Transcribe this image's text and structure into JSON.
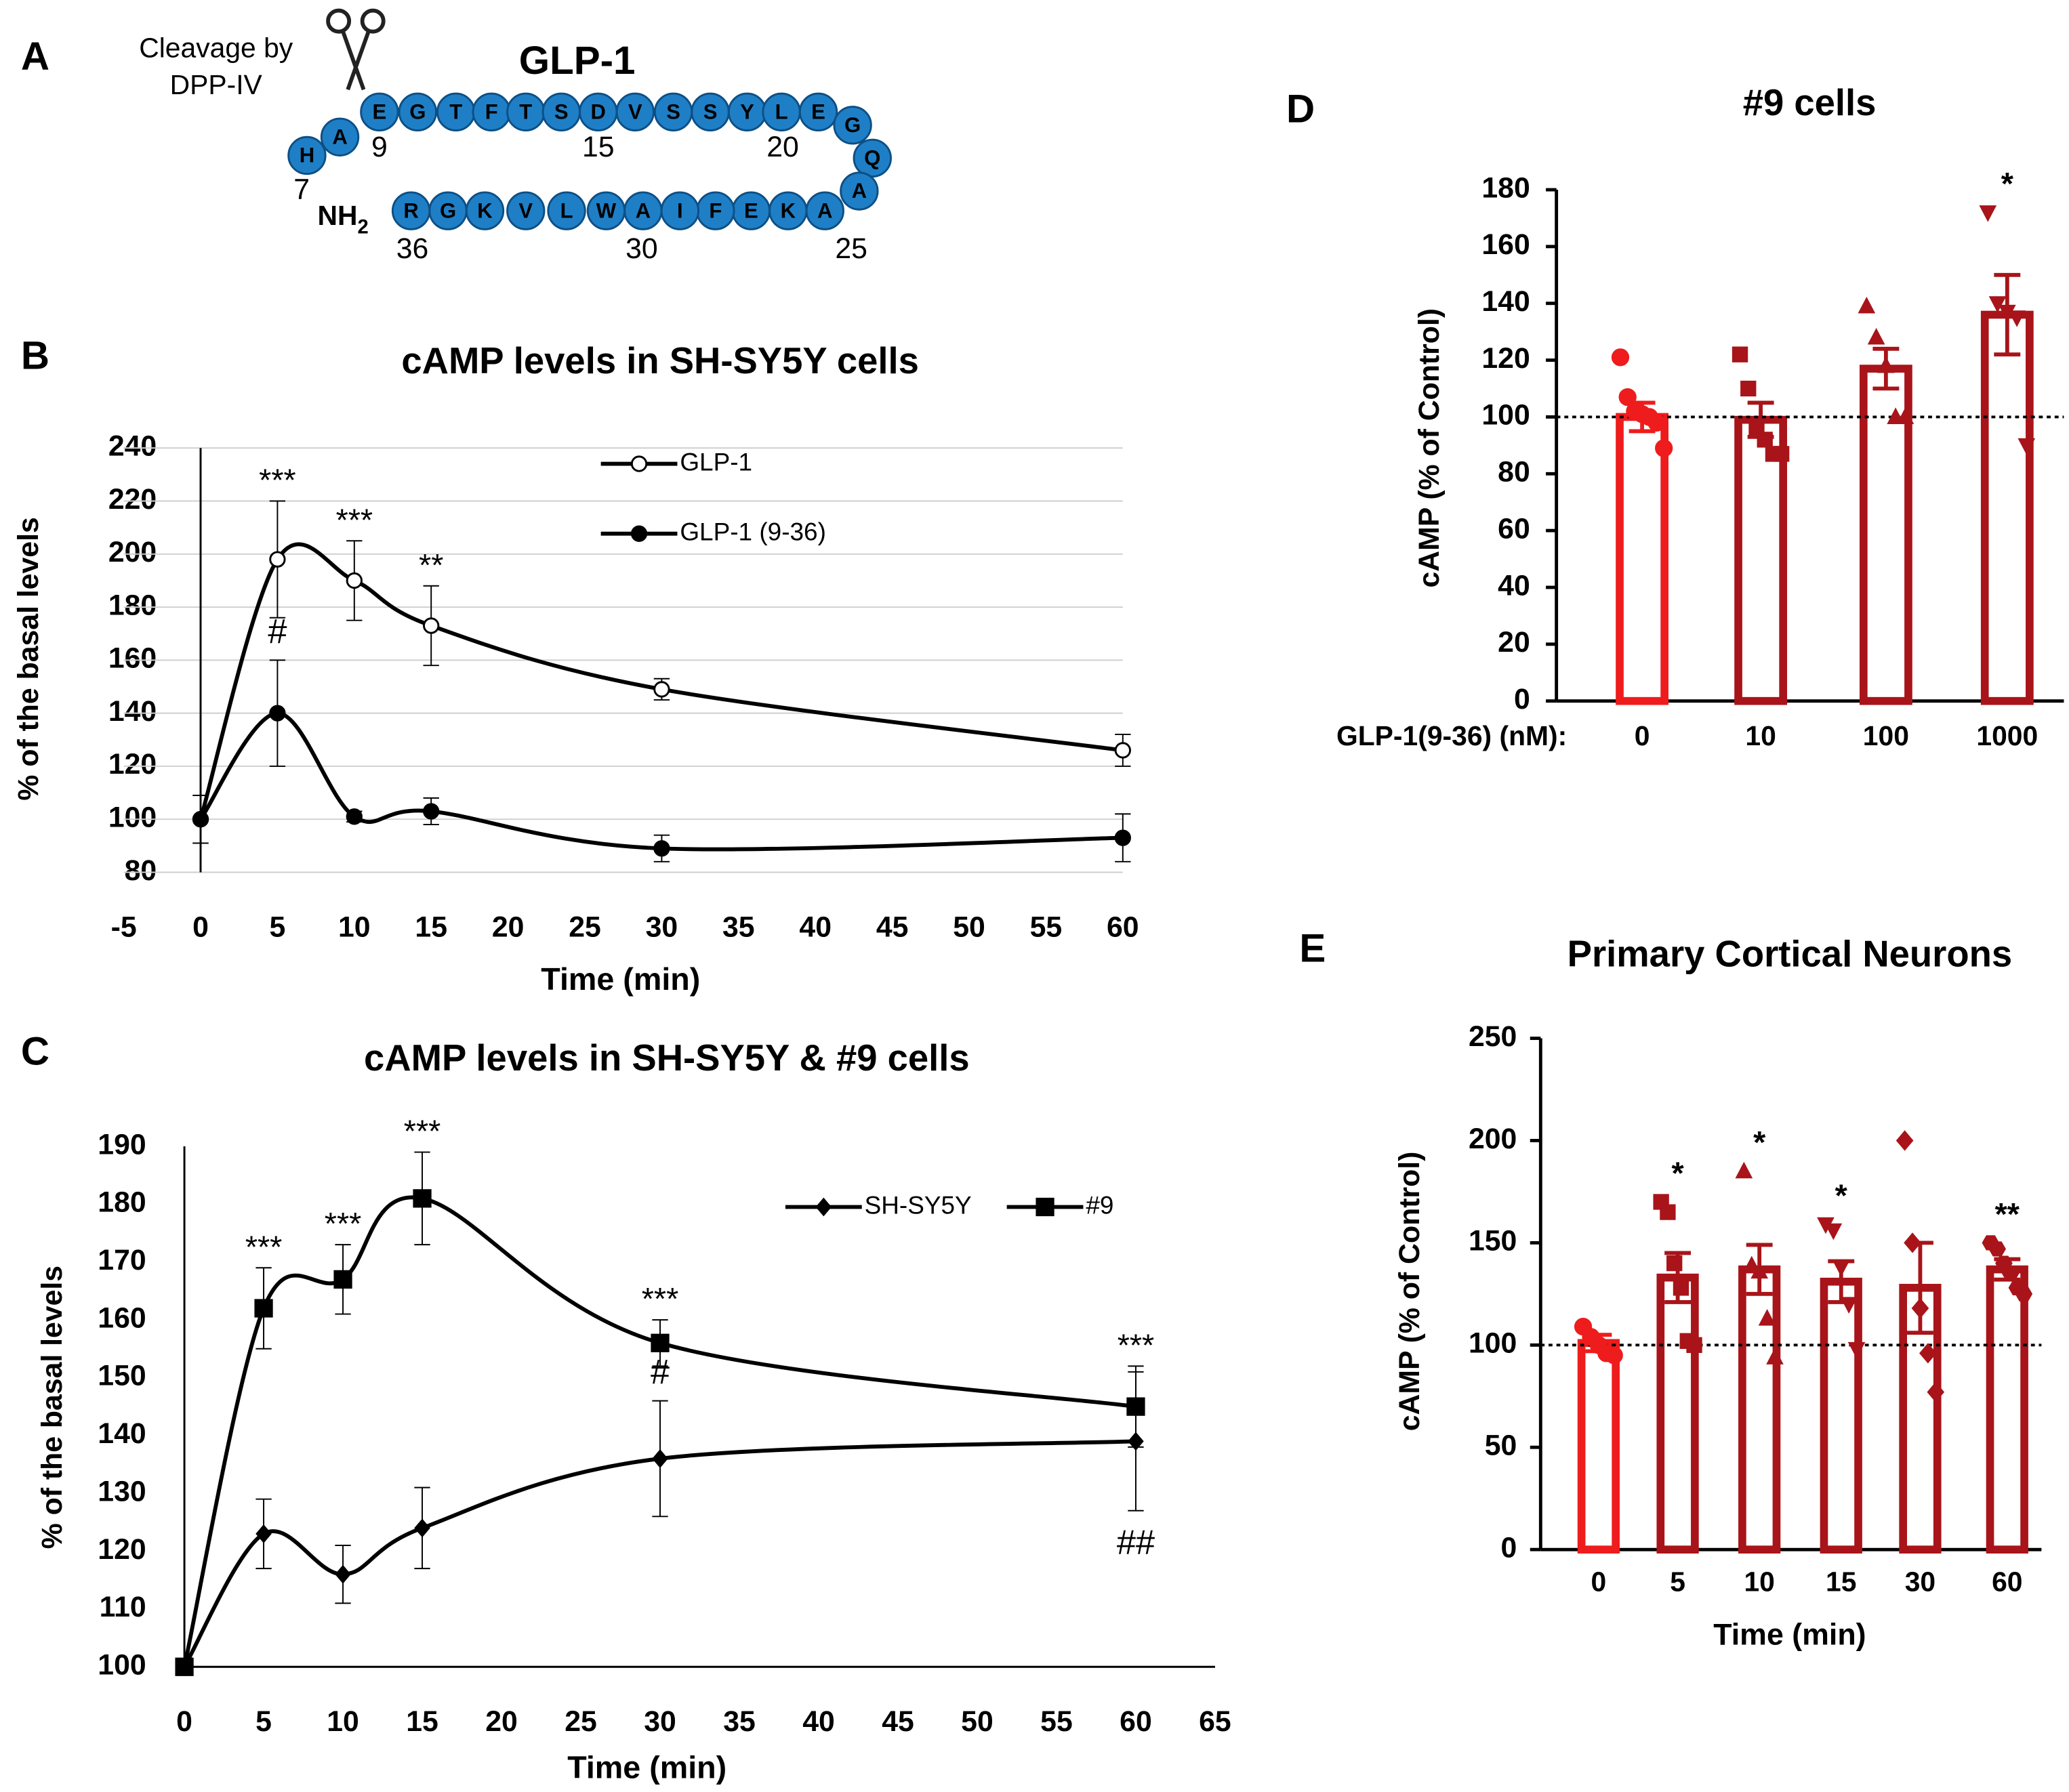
{
  "diagram": {
    "panel": "A",
    "title": "GLP-1",
    "cleavage": [
      "Cleavage by",
      "DPP-IV"
    ],
    "residues": [
      "H",
      "A",
      "E",
      "G",
      "T",
      "F",
      "T",
      "S",
      "D",
      "V",
      "S",
      "S",
      "Y",
      "L",
      "E",
      "G",
      "Q",
      "A",
      "A",
      "K",
      "E",
      "F",
      "I",
      "A",
      "W",
      "L",
      "V",
      "K",
      "G",
      "R"
    ],
    "numbers": [
      "7",
      "9",
      "15",
      "20",
      "25",
      "30",
      "36"
    ],
    "terminus": "NH",
    "terminus_sub": "2"
  },
  "chart_data": [
    {
      "panel": "B",
      "type": "line",
      "title": "cAMP levels in SH-SY5Y cells",
      "x_label": "Time (min)",
      "y_label": "% of the basal levels",
      "xlim": [
        -5,
        60
      ],
      "xticks": [
        -5,
        0,
        5,
        10,
        15,
        20,
        25,
        30,
        35,
        40,
        45,
        50,
        55,
        60
      ],
      "ylim": [
        80,
        240
      ],
      "yticks": [
        80,
        100,
        120,
        140,
        160,
        180,
        200,
        220,
        240
      ],
      "grid": true,
      "legend": "top",
      "x": [
        0,
        5,
        10,
        15,
        30,
        60
      ],
      "series": [
        {
          "name": "GLP-1",
          "marker": "open-circle",
          "color": "#000000",
          "values": [
            100,
            198,
            190,
            173,
            149,
            126
          ],
          "errors": [
            9,
            22,
            15,
            15,
            4,
            6
          ],
          "annotations": [
            {
              "x": 5,
              "text": "***"
            },
            {
              "x": 10,
              "text": "***"
            },
            {
              "x": 15,
              "text": "**"
            }
          ]
        },
        {
          "name": "GLP-1 (9-36)",
          "marker": "circle",
          "color": "#000000",
          "values": [
            100,
            140,
            101,
            103,
            89,
            93
          ],
          "errors": [
            9,
            20,
            2,
            5,
            5,
            9
          ],
          "annotations": [
            {
              "x": 5,
              "text": "#"
            }
          ]
        }
      ]
    },
    {
      "panel": "C",
      "type": "line",
      "title": "cAMP levels in SH-SY5Y & #9 cells",
      "x_label": "Time (min)",
      "y_label": "% of the basal levels",
      "xlim": [
        0,
        65
      ],
      "xticks": [
        0,
        5,
        10,
        15,
        20,
        25,
        30,
        35,
        40,
        45,
        50,
        55,
        60,
        65
      ],
      "ylim": [
        100,
        190
      ],
      "yticks": [
        100,
        110,
        120,
        130,
        140,
        150,
        160,
        170,
        180,
        190
      ],
      "grid": false,
      "legend": "top",
      "x": [
        0,
        5,
        10,
        15,
        30,
        60
      ],
      "series": [
        {
          "name": "SH-SY5Y",
          "marker": "diamond",
          "color": "#000000",
          "values": [
            100,
            123,
            116,
            124,
            136,
            139
          ],
          "errors": [
            0,
            6,
            5,
            7,
            10,
            12
          ],
          "annotations": [
            {
              "x": 30,
              "text": "#"
            },
            {
              "x": 60,
              "text": "##",
              "side": "below"
            }
          ]
        },
        {
          "name": "#9",
          "marker": "square",
          "color": "#000000",
          "values": [
            100,
            162,
            167,
            181,
            156,
            145
          ],
          "errors": [
            0,
            7,
            6,
            8,
            4,
            7
          ],
          "annotations": [
            {
              "x": 5,
              "text": "***"
            },
            {
              "x": 10,
              "text": "***"
            },
            {
              "x": 15,
              "text": "***"
            },
            {
              "x": 30,
              "text": "***"
            },
            {
              "x": 60,
              "text": "***"
            }
          ]
        }
      ]
    },
    {
      "panel": "D",
      "type": "bar",
      "title": "#9 cells",
      "x_label": "GLP-1(9-36) (nM):",
      "y_label": "cAMP (% of Control)",
      "categories": [
        "0",
        "10",
        "100",
        "1000"
      ],
      "values": [
        100,
        99,
        117,
        136
      ],
      "errors": [
        5,
        6,
        7,
        14
      ],
      "colors": [
        "#ee1c1c",
        "#a81419",
        "#a81419",
        "#a81419"
      ],
      "markers": [
        "circle",
        "square",
        "triangle-up",
        "triangle-down"
      ],
      "points": [
        [
          121,
          107,
          102,
          101,
          100,
          98,
          89
        ],
        [
          122,
          110,
          96,
          92,
          87,
          87
        ],
        [
          139,
          128,
          118,
          100,
          100
        ],
        [
          172,
          140,
          137,
          135,
          90
        ]
      ],
      "ylim": [
        0,
        180
      ],
      "yticks": [
        0,
        20,
        40,
        60,
        80,
        100,
        120,
        140,
        160,
        180
      ],
      "reference_line": 100,
      "annotations": [
        {
          "category": "1000",
          "text": "*"
        }
      ]
    },
    {
      "panel": "E",
      "type": "bar",
      "title": "Primary Cortical Neurons",
      "x_label": "Time (min)",
      "y_label": "cAMP (% of Control)",
      "categories": [
        "0",
        "5",
        "10",
        "15",
        "30",
        "60"
      ],
      "values": [
        101,
        133,
        137,
        131,
        128,
        137
      ],
      "errors": [
        4,
        12,
        12,
        10,
        22,
        5
      ],
      "colors": [
        "#ee1c1c",
        "#a81419",
        "#a81419",
        "#a81419",
        "#a81419",
        "#a81419"
      ],
      "markers": [
        "circle",
        "square",
        "triangle-up",
        "triangle-down",
        "diamond",
        "hexagon"
      ],
      "points": [
        [
          109,
          104,
          100,
          96,
          95
        ],
        [
          170,
          165,
          140,
          128,
          102,
          100
        ],
        [
          185,
          139,
          136,
          113,
          94
        ],
        [
          159,
          156,
          138,
          120,
          98
        ],
        [
          200,
          150,
          118,
          96,
          77
        ],
        [
          150,
          147,
          140,
          135,
          128,
          125
        ]
      ],
      "ylim": [
        0,
        250
      ],
      "yticks": [
        0,
        50,
        100,
        150,
        200,
        250
      ],
      "reference_line": 100,
      "annotations": [
        {
          "category": "5",
          "text": "*"
        },
        {
          "category": "10",
          "text": "*"
        },
        {
          "category": "15",
          "text": "*"
        },
        {
          "category": "60",
          "text": "**"
        }
      ]
    }
  ]
}
